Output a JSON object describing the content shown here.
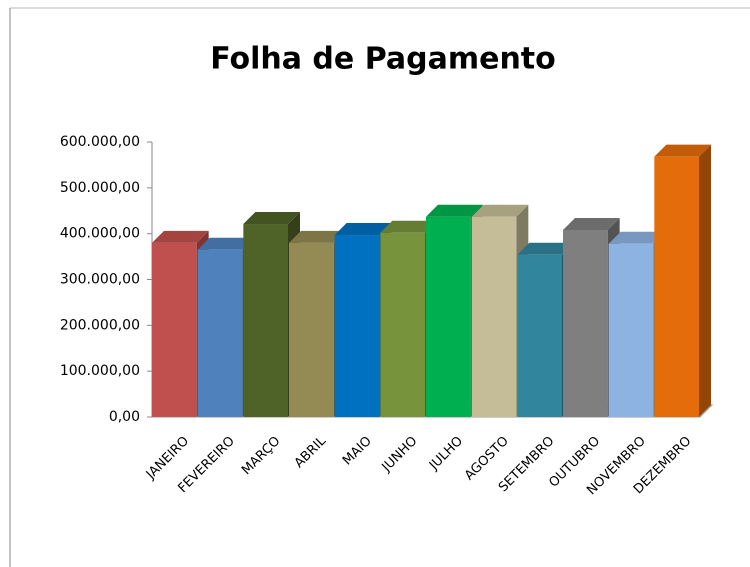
{
  "chart_data": {
    "type": "bar3d",
    "title": "Folha de Pagamento",
    "categories": [
      "JANEIRO",
      "FEVEREIRO",
      "MARÇO",
      "ABRIL",
      "MAIO",
      "JUNHO",
      "JULHO",
      "AGOSTO",
      "SETEMBRO",
      "OUTUBRO",
      "NOVEMBRO",
      "DEZEMBRO"
    ],
    "values": [
      380000,
      365000,
      421000,
      380000,
      397000,
      402000,
      437000,
      437000,
      354000,
      408000,
      378000,
      568000
    ],
    "colors": [
      "#c0504d",
      "#4f81bd",
      "#4f6228",
      "#948a54",
      "#0070c0",
      "#77933c",
      "#00b050",
      "#c4bd97",
      "#31859c",
      "#7f7f7f",
      "#8db3e2",
      "#e46c0a"
    ],
    "ylim": [
      0,
      600000
    ],
    "yticks": [
      {
        "value": 0,
        "label": "0,00"
      },
      {
        "value": 100000,
        "label": "100.000,00"
      },
      {
        "value": 200000,
        "label": "200.000,00"
      },
      {
        "value": 300000,
        "label": "300.000,00"
      },
      {
        "value": 400000,
        "label": "400.000,00"
      },
      {
        "value": 500000,
        "label": "500.000,00"
      },
      {
        "value": 600000,
        "label": "600.000,00"
      }
    ],
    "grid": false
  }
}
